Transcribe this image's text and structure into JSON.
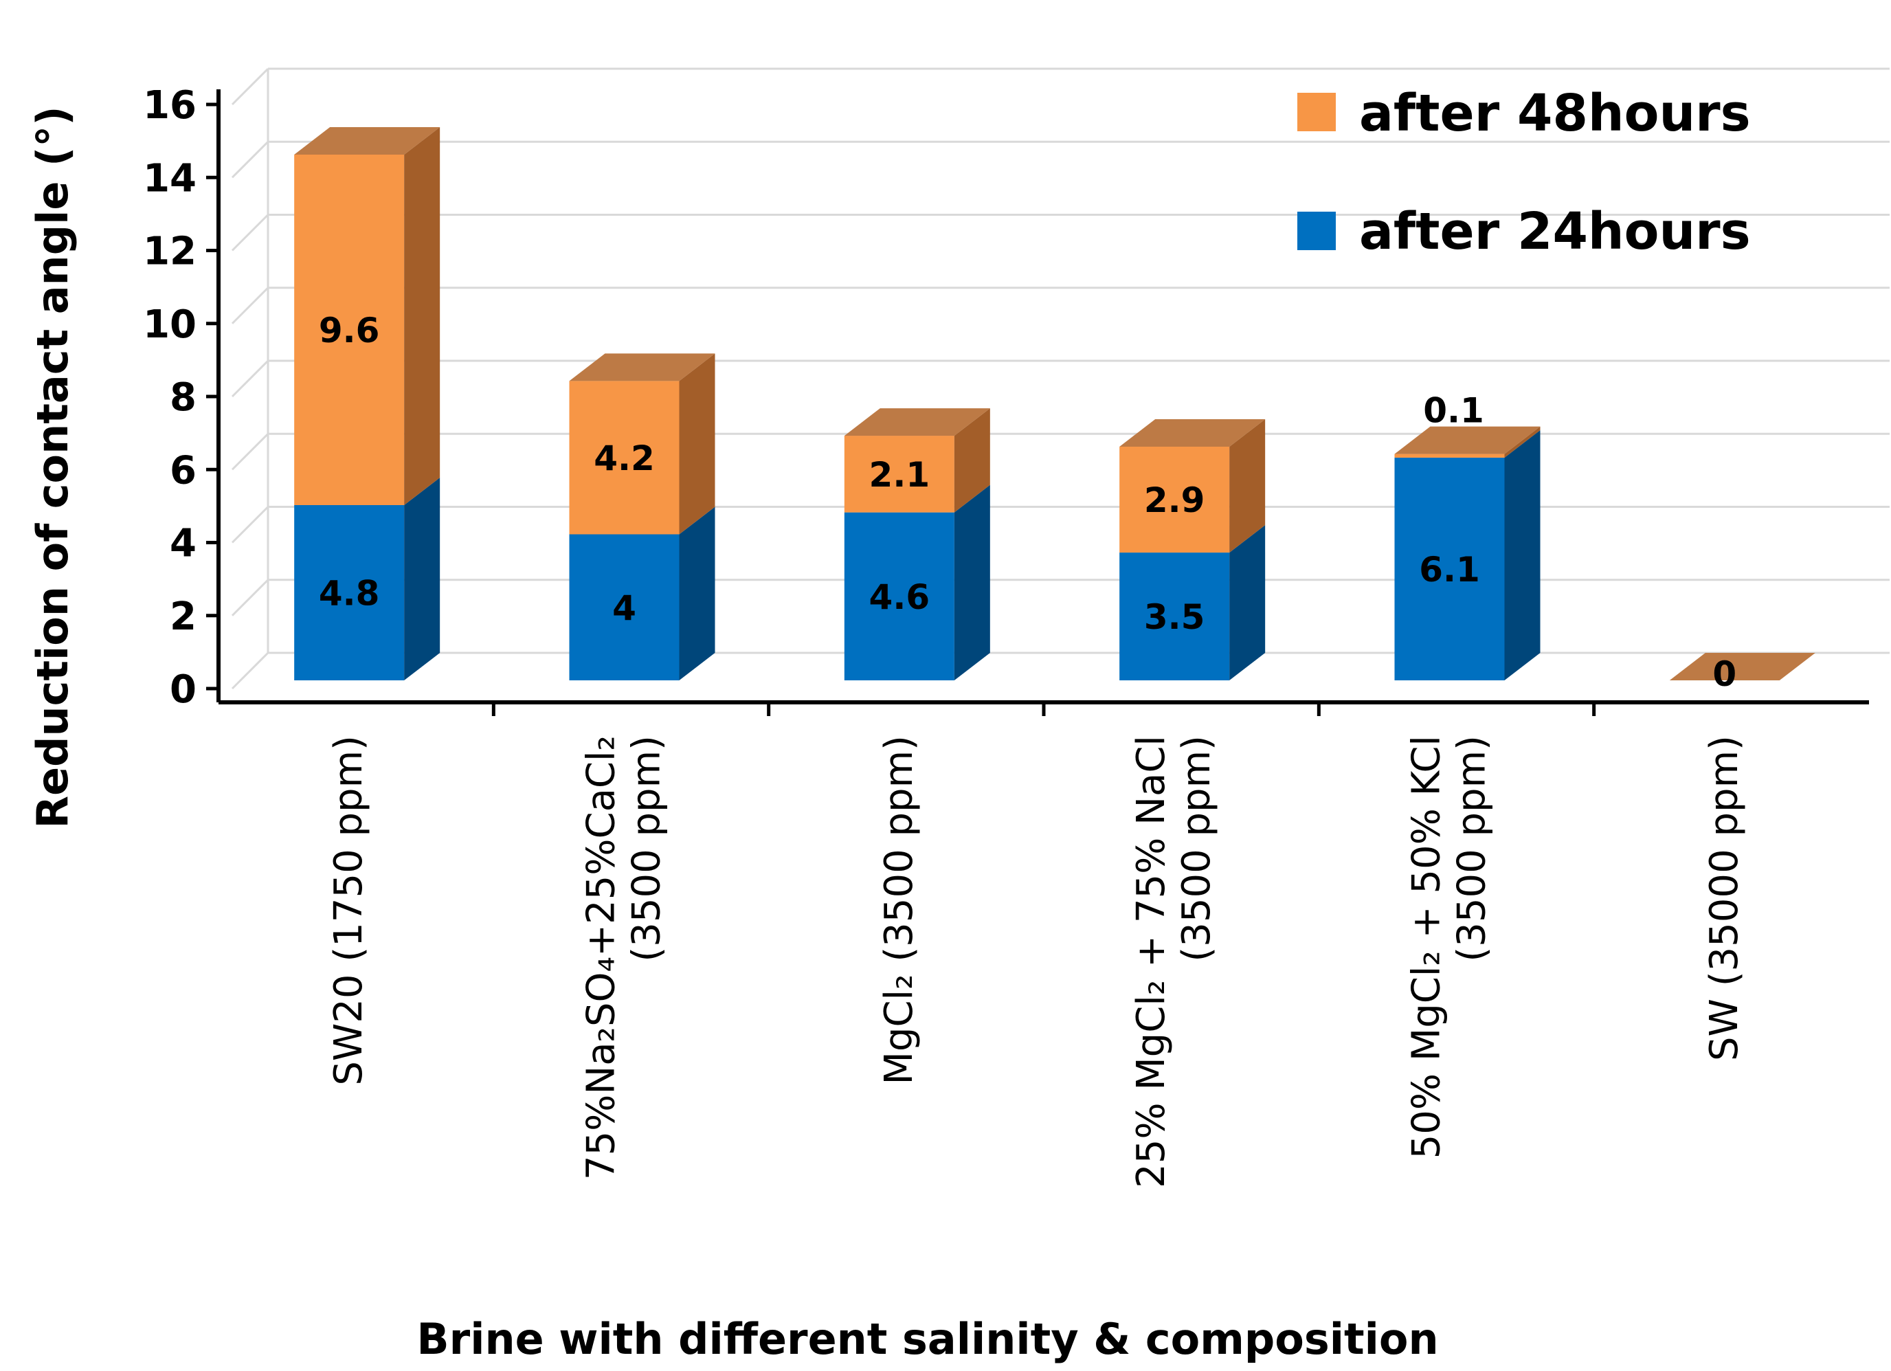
{
  "chart_data": {
    "type": "bar",
    "stacked": true,
    "three_d": true,
    "title": "",
    "xlabel": "Brine with different salinity & composition",
    "ylabel": "Reduction of contact angle (°)",
    "ylim": [
      0,
      16
    ],
    "yticks": [
      "0",
      "2",
      "4",
      "6",
      "8",
      "10",
      "12",
      "14",
      "16"
    ],
    "grid": true,
    "legend_position": "top-right",
    "categories": [
      [
        "SW20 (1750 ppm)"
      ],
      [
        "75%Na₂SO₄+25%CaCl₂",
        "(3500 ppm)"
      ],
      [
        "MgCl₂ (3500 ppm)"
      ],
      [
        "25% MgCl₂ + 75% NaCl",
        "(3500 ppm)"
      ],
      [
        "50% MgCl₂ + 50% KCl",
        "(3500 ppm)"
      ],
      [
        "SW (35000 ppm)"
      ]
    ],
    "series": [
      {
        "name": "after 24hours",
        "color": "#0070C0",
        "side_color": "#00467A",
        "values": [
          4.8,
          4,
          4.6,
          3.5,
          6.1,
          0
        ],
        "labels": [
          "4.8",
          "4",
          "4.6",
          "3.5",
          "6.1",
          ""
        ]
      },
      {
        "name": "after 48hours",
        "color": "#F79646",
        "side_color": "#A35E29",
        "top_color": "#BD7A45",
        "values": [
          9.6,
          4.2,
          2.1,
          2.9,
          0.1,
          0
        ],
        "labels": [
          "9.6",
          "4.2",
          "2.1",
          "2.9",
          "0.1",
          "0"
        ]
      }
    ]
  }
}
